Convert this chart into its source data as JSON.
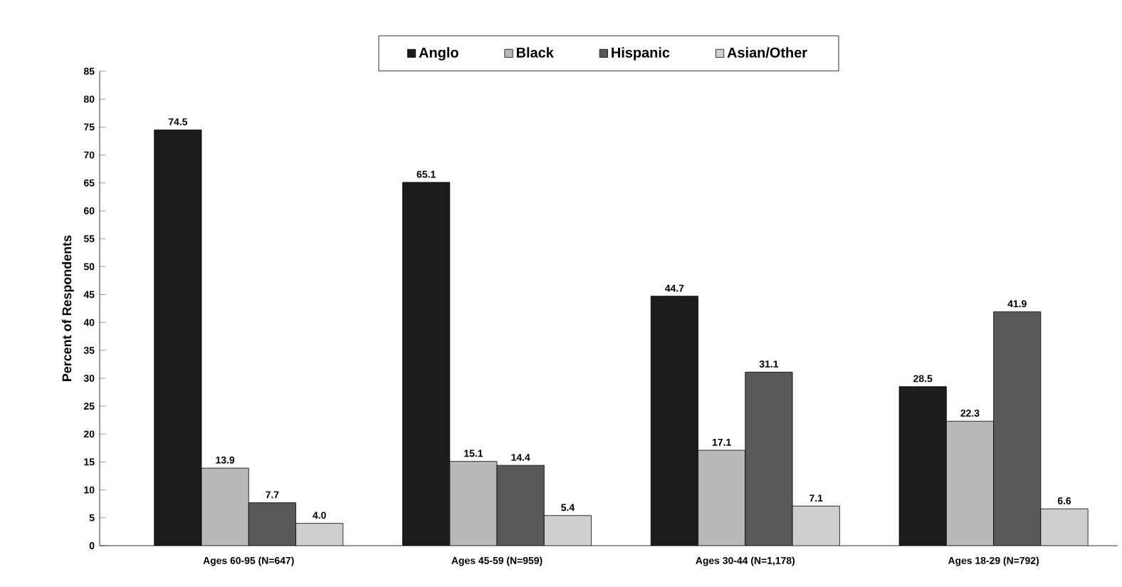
{
  "chart_data": {
    "type": "bar",
    "ylabel": "Percent of Respondents",
    "categories": [
      "Ages 60-95 (N=647)",
      "Ages 45-59 (N=959)",
      "Ages 30-44 (N=1,178)",
      "Ages 18-29 (N=792)"
    ],
    "series": [
      {
        "name": "Anglo",
        "color": "#1c1c1c",
        "values": [
          74.5,
          65.1,
          44.7,
          28.5
        ],
        "value_labels": [
          "74.5",
          "65.1",
          "44.7",
          "28.5"
        ]
      },
      {
        "name": "Black",
        "color": "#b8b8b8",
        "values": [
          13.9,
          15.1,
          17.1,
          22.3
        ],
        "value_labels": [
          "13.9",
          "15.1",
          "17.1",
          "22.3"
        ]
      },
      {
        "name": "Hispanic",
        "color": "#595959",
        "values": [
          7.7,
          14.4,
          31.1,
          41.9
        ],
        "value_labels": [
          "7.7",
          "14.4",
          "31.1",
          "41.9"
        ]
      },
      {
        "name": "Asian/Other",
        "color": "#cfcfcf",
        "values": [
          4.0,
          5.4,
          7.1,
          6.6
        ],
        "value_labels": [
          "4.0",
          "5.4",
          "7.1",
          "6.6"
        ]
      }
    ],
    "ylim": [
      0,
      85
    ],
    "yticks": [
      0,
      5,
      10,
      15,
      20,
      25,
      30,
      35,
      40,
      45,
      50,
      55,
      60,
      65,
      70,
      75,
      80,
      85
    ],
    "legend": "top",
    "grid": false
  }
}
